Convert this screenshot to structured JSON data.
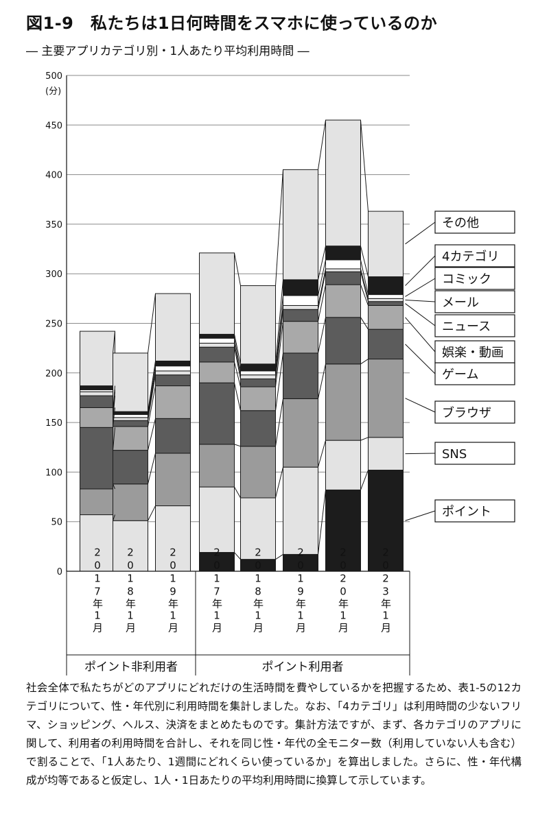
{
  "figure": {
    "title": "図1-9　私たちは1日何時間をスマホに使っているのか",
    "subtitle": "― 主要アプリカテゴリ別・1人あたり平均利用時間 ―",
    "note": "社会全体で私たちがどのアプリにどれだけの生活時間を費やしているかを把握するため、表1-5の12カテゴリについて、性・年代別に利用時間を集計しました。なお、「4カテゴリ」は利用時間の少ないフリマ、ショッピング、ヘルス、決済をまとめたものです。集計方法ですが、まず、各カテゴリのアプリに関して、利用者の利用時間を合計し、それを同じ性・年代の全モニター数（利用していない人も含む）で割ることで、「1人あたり、1週間にどれくらい使っているか」を算出しました。さらに、性・年代構成が均等であると仮定し、1人・1日あたりの平均利用時間に換算して示しています。"
  },
  "chart_data": {
    "type": "bar",
    "stacked": true,
    "title": "図1-9　私たちは1日何時間をスマホに使っているのか",
    "subtitle": "― 主要アプリカテゴリ別・1人あたり平均利用時間 ―",
    "ylabel": "(分)",
    "ylim": [
      0,
      500
    ],
    "yticks": [
      0,
      50,
      100,
      150,
      200,
      250,
      300,
      350,
      400,
      450,
      500
    ],
    "categories": [
      "2017年1月",
      "2018年1月",
      "2019年1月",
      "2017年1月",
      "2018年1月",
      "2019年1月",
      "2020年1月",
      "2023年1月"
    ],
    "groups": [
      {
        "label": "ポイント非利用者",
        "count": 3
      },
      {
        "label": "ポイント利用者",
        "count": 5
      }
    ],
    "legend_position": "right",
    "series": [
      {
        "name": "ポイント",
        "color": "#1c1c1c",
        "values": [
          0,
          0,
          0,
          19,
          12,
          17,
          82,
          102
        ]
      },
      {
        "name": "SNS",
        "color": "#e3e3e3",
        "values": [
          57,
          51,
          66,
          66,
          62,
          88,
          50,
          33
        ]
      },
      {
        "name": "ブラウザ",
        "color": "#9b9b9b",
        "values": [
          26,
          37,
          53,
          43,
          52,
          69,
          77,
          79
        ]
      },
      {
        "name": "ゲーム",
        "color": "#5c5c5c",
        "values": [
          62,
          34,
          35,
          62,
          36,
          46,
          47,
          30
        ]
      },
      {
        "name": "娯楽・動画",
        "color": "#a9a9a9",
        "values": [
          20,
          24,
          33,
          21,
          24,
          32,
          33,
          24
        ]
      },
      {
        "name": "ニュース",
        "color": "#5c5c5c",
        "values": [
          12,
          6,
          11,
          15,
          8,
          12,
          13,
          4
        ]
      },
      {
        "name": "メール",
        "color": "#e3e3e3",
        "values": [
          4,
          3,
          4,
          4,
          4,
          4,
          3,
          3
        ]
      },
      {
        "name": "コミック",
        "color": "#ffffff",
        "values": [
          2,
          3,
          5,
          5,
          4,
          10,
          9,
          4
        ]
      },
      {
        "name": "4カテゴリ",
        "color": "#1c1c1c",
        "values": [
          4,
          3,
          5,
          4,
          7,
          16,
          14,
          18
        ]
      },
      {
        "name": "その他",
        "color": "#e3e3e3",
        "values": [
          55,
          59,
          68,
          82,
          79,
          111,
          127,
          66
        ]
      }
    ]
  }
}
